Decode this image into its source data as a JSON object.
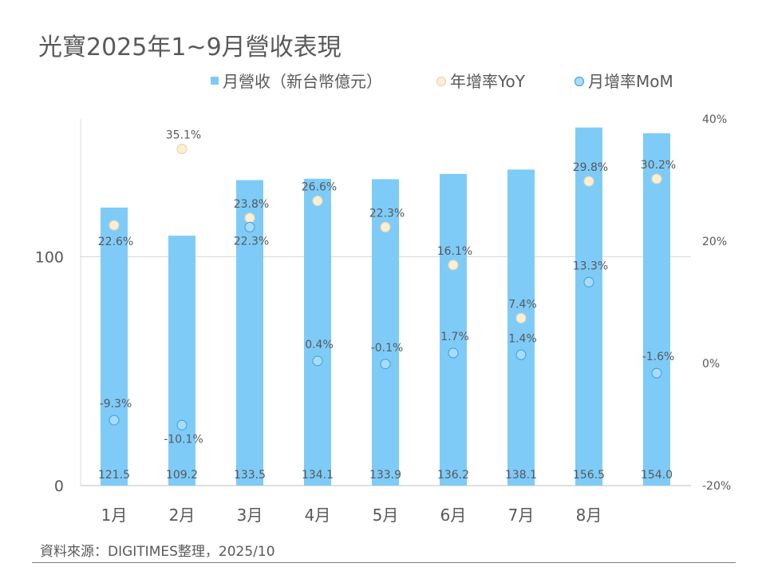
{
  "title": "光寶2025年1~9月營收表現",
  "source": "資料來源：DIGITIMES整理，2025/10",
  "colors": {
    "bar": "#7ecbf8",
    "yoy_fill": "#fcefd2",
    "yoy_stroke": "#e2d6b8",
    "mom_fill": "#a9dcfa",
    "mom_stroke": "#4aa7dd",
    "grid": "#d9d9d9",
    "text": "#595959"
  },
  "chart_data": {
    "type": "bar",
    "categories": [
      "1月",
      "2月",
      "3月",
      "4月",
      "5月",
      "6月",
      "7月",
      "8月",
      ""
    ],
    "series": [
      {
        "name": "月營收（新台幣億元）",
        "type": "bar",
        "axis": "left",
        "values": [
          121.5,
          109.2,
          133.5,
          134.1,
          133.9,
          136.2,
          138.1,
          156.5,
          154.0
        ],
        "labels": [
          "121.5",
          "109.2",
          "133.5",
          "134.1",
          "133.9",
          "136.2",
          "138.1",
          "156.5",
          "154.0"
        ]
      },
      {
        "name": "年增率YoY",
        "type": "scatter",
        "axis": "right",
        "values": [
          22.6,
          35.1,
          23.8,
          26.6,
          22.3,
          16.1,
          7.4,
          29.8,
          30.2
        ],
        "labels": [
          "22.6%",
          "35.1%",
          "23.8%",
          "26.6%",
          "22.3%",
          "16.1%",
          "7.4%",
          "29.8%",
          "30.2%"
        ]
      },
      {
        "name": "月增率MoM",
        "type": "scatter",
        "axis": "right",
        "values": [
          -9.3,
          -10.1,
          22.3,
          0.4,
          -0.1,
          1.7,
          1.4,
          13.3,
          -1.6
        ],
        "labels": [
          "-9.3%",
          "-10.1%",
          "22.3%",
          "0.4%",
          "-0.1%",
          "1.7%",
          "1.4%",
          "13.3%",
          "-1.6%"
        ]
      }
    ],
    "left_axis": {
      "range": [
        0,
        200
      ],
      "ticks": [
        0,
        100
      ],
      "tick_labels": [
        "0",
        "100"
      ]
    },
    "right_axis": {
      "range": [
        -20,
        40
      ],
      "ticks": [
        -20,
        0,
        20,
        40
      ],
      "tick_labels": [
        "-20%",
        "0%",
        "20%",
        "40%"
      ]
    },
    "grid": true,
    "legend_position": "top"
  }
}
